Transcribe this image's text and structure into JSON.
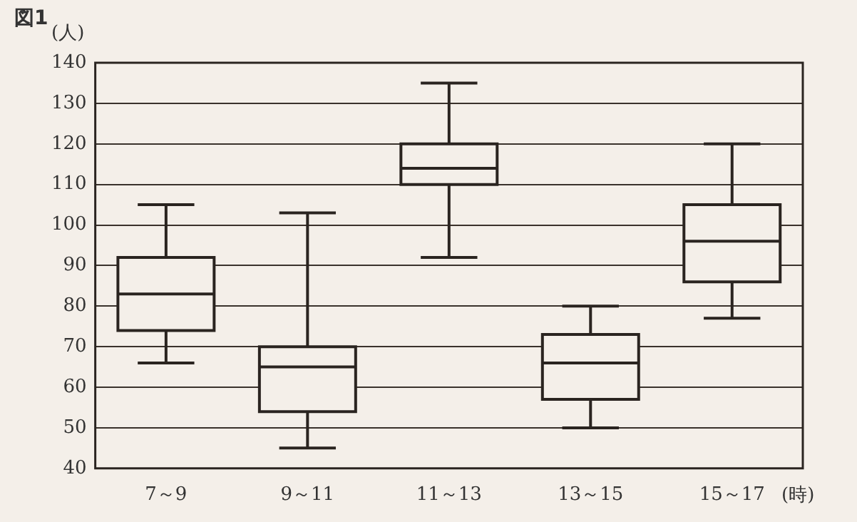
{
  "chart_data": {
    "type": "box",
    "title": "図1",
    "ylabel": "(人)",
    "xlabel": "(時)",
    "categories": [
      "7～9",
      "9～11",
      "11～13",
      "13～15",
      "15～17"
    ],
    "boxes": [
      {
        "low": 66,
        "q1": 74,
        "median": 83,
        "q3": 92,
        "high": 105
      },
      {
        "low": 45,
        "q1": 54,
        "median": 65,
        "q3": 70,
        "high": 103
      },
      {
        "low": 92,
        "q1": 110,
        "median": 114,
        "q3": 120,
        "high": 135
      },
      {
        "low": 50,
        "q1": 57,
        "median": 66,
        "q3": 73,
        "high": 80
      },
      {
        "low": 77,
        "q1": 86,
        "median": 96,
        "q3": 105,
        "high": 120
      }
    ],
    "ylim": [
      40,
      140
    ],
    "yticks": [
      40,
      50,
      60,
      70,
      80,
      90,
      100,
      110,
      120,
      130,
      140
    ],
    "grid": "y",
    "legend": false
  }
}
